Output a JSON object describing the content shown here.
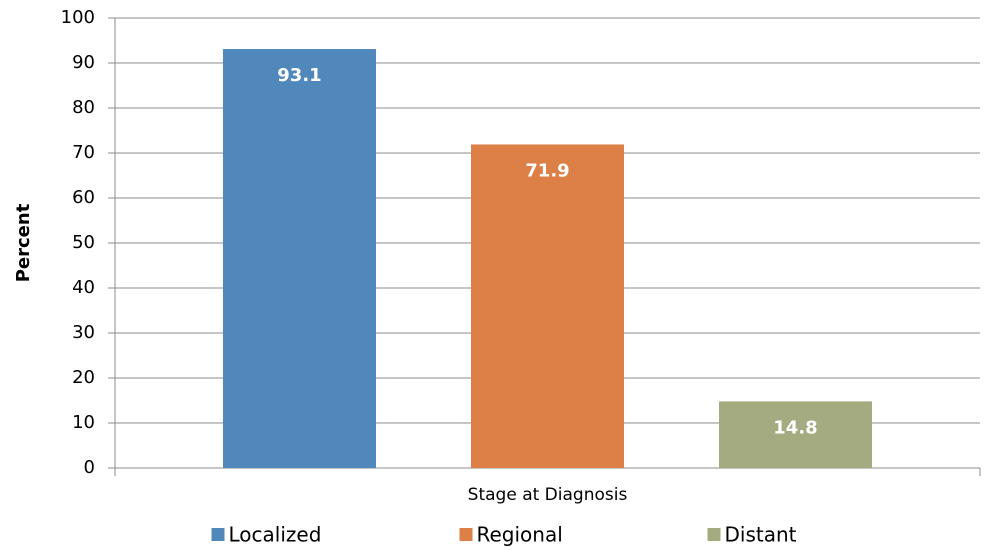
{
  "chart_data": {
    "type": "bar",
    "y_label": "Percent",
    "x_label": "Stage at Diagnosis",
    "categories": [
      "Stage at Diagnosis"
    ],
    "series": [
      {
        "name": "Localized",
        "color": "#5088bb",
        "values": [
          93.1
        ]
      },
      {
        "name": "Regional",
        "color": "#dd8047",
        "values": [
          71.9
        ]
      },
      {
        "name": "Distant",
        "color": "#a5ab81",
        "values": [
          14.8
        ]
      }
    ],
    "ylim": [
      0,
      100
    ],
    "yticks": [
      0,
      10,
      20,
      30,
      40,
      50,
      60,
      70,
      80,
      90,
      100
    ],
    "grid": true,
    "legend": "bottom"
  }
}
